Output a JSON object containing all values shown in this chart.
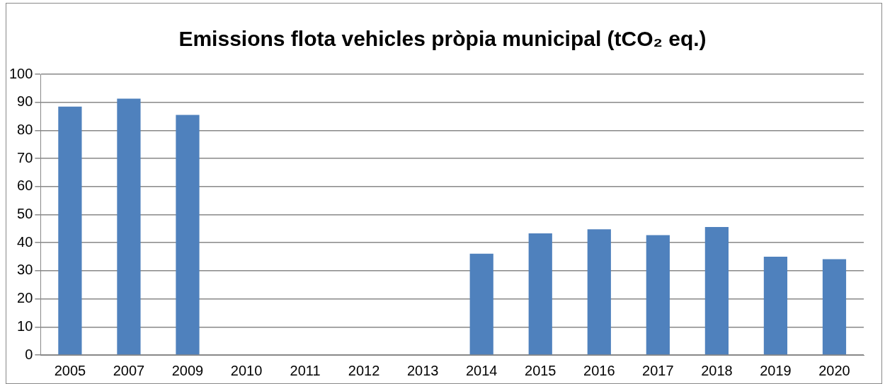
{
  "chart_data": {
    "type": "bar",
    "title": "Emissions flota vehicles pròpia municipal (tCO₂ eq.)",
    "categories": [
      "2005",
      "2007",
      "2009",
      "2010",
      "2011",
      "2012",
      "2013",
      "2014",
      "2015",
      "2016",
      "2017",
      "2018",
      "2019",
      "2020"
    ],
    "values": [
      88.5,
      91.3,
      85.5,
      null,
      null,
      null,
      null,
      36.1,
      43.3,
      44.8,
      42.7,
      45.6,
      35.0,
      34.1
    ],
    "color": "#4f81bd",
    "ylim": [
      0,
      100
    ],
    "yticks": [
      0,
      10,
      20,
      30,
      40,
      50,
      60,
      70,
      80,
      90,
      100
    ],
    "grid": "y",
    "legend": false
  }
}
